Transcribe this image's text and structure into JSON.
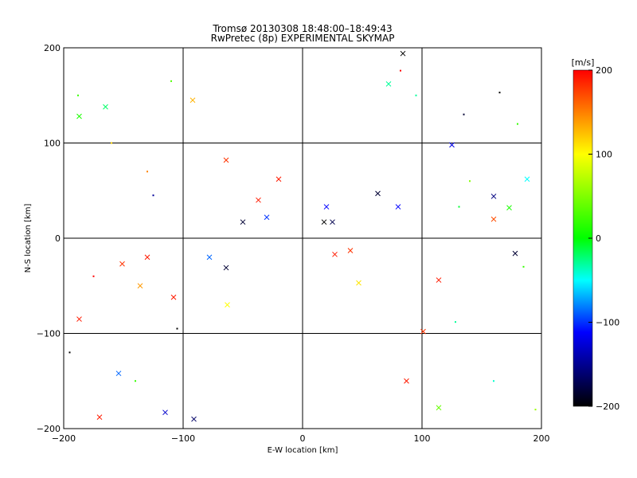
{
  "chart_data": {
    "type": "scatter",
    "title": "Tromsø 20130308 18:48:00–18:49:43",
    "subtitle": "RwPretec (8p) EXPERIMENTAL SKYMAP",
    "xlabel": "E-W location [km]",
    "ylabel": "N-S location [km]",
    "xlim": [
      -200,
      200
    ],
    "ylim": [
      -200,
      200
    ],
    "xticks": [
      -200,
      -100,
      0,
      100,
      200
    ],
    "yticks": [
      -200,
      -100,
      0,
      100,
      200
    ],
    "grid": true,
    "colorbar": {
      "label": "[m/s]",
      "min": -200,
      "max": 200,
      "ticks": [
        200,
        100,
        0,
        -100,
        -200
      ],
      "colors": [
        "#ff0000",
        "#ffff00",
        "#00ff00",
        "#00ffff",
        "#0000ff",
        "#000000"
      ]
    },
    "marker_styles": [
      "small dot",
      "cross"
    ],
    "points": [
      {
        "x": 84,
        "y": 194,
        "v": -200,
        "m": "x"
      },
      {
        "x": -92,
        "y": 145,
        "v": 130,
        "m": "x"
      },
      {
        "x": -187,
        "y": 128,
        "v": 10,
        "m": "x"
      },
      {
        "x": -165,
        "y": 138,
        "v": -20,
        "m": "x"
      },
      {
        "x": 72,
        "y": 162,
        "v": -30,
        "m": "x"
      },
      {
        "x": 125,
        "y": 98,
        "v": -110,
        "m": "x"
      },
      {
        "x": -64,
        "y": 82,
        "v": 180,
        "m": "x"
      },
      {
        "x": -20,
        "y": 62,
        "v": 190,
        "m": "x"
      },
      {
        "x": 80,
        "y": 33,
        "v": -100,
        "m": "x"
      },
      {
        "x": 63,
        "y": 47,
        "v": -180,
        "m": "x"
      },
      {
        "x": 18,
        "y": 17,
        "v": -200,
        "m": "x"
      },
      {
        "x": 25,
        "y": 17,
        "v": -170,
        "m": "x"
      },
      {
        "x": -50,
        "y": 17,
        "v": -180,
        "m": "x"
      },
      {
        "x": -37,
        "y": 40,
        "v": 190,
        "m": "x"
      },
      {
        "x": 160,
        "y": 44,
        "v": -150,
        "m": "x"
      },
      {
        "x": 160,
        "y": 20,
        "v": 170,
        "m": "x"
      },
      {
        "x": 178,
        "y": -16,
        "v": -180,
        "m": "x"
      },
      {
        "x": 27,
        "y": -17,
        "v": 190,
        "m": "x"
      },
      {
        "x": 40,
        "y": -13,
        "v": 180,
        "m": "x"
      },
      {
        "x": -78,
        "y": -20,
        "v": -80,
        "m": "x"
      },
      {
        "x": -64,
        "y": -31,
        "v": -180,
        "m": "x"
      },
      {
        "x": -130,
        "y": -20,
        "v": 190,
        "m": "x"
      },
      {
        "x": -151,
        "y": -27,
        "v": 180,
        "m": "x"
      },
      {
        "x": -136,
        "y": -50,
        "v": 140,
        "m": "x"
      },
      {
        "x": -108,
        "y": -62,
        "v": 190,
        "m": "x"
      },
      {
        "x": -187,
        "y": -85,
        "v": 190,
        "m": "x"
      },
      {
        "x": -115,
        "y": -183,
        "v": -120,
        "m": "x"
      },
      {
        "x": -91,
        "y": -190,
        "v": -160,
        "m": "x"
      },
      {
        "x": -170,
        "y": -188,
        "v": 190,
        "m": "x"
      },
      {
        "x": -154,
        "y": -142,
        "v": -80,
        "m": "x"
      },
      {
        "x": 87,
        "y": -150,
        "v": 190,
        "m": "x"
      },
      {
        "x": 114,
        "y": -178,
        "v": 40,
        "m": "x"
      },
      {
        "x": 47,
        "y": -47,
        "v": 110,
        "m": "x"
      },
      {
        "x": 114,
        "y": -44,
        "v": 190,
        "m": "x"
      },
      {
        "x": 101,
        "y": -98,
        "v": 180,
        "m": "x"
      },
      {
        "x": 20,
        "y": 33,
        "v": -100,
        "m": "x"
      },
      {
        "x": -30,
        "y": 22,
        "v": -90,
        "m": "x"
      },
      {
        "x": 188,
        "y": 62,
        "v": -50,
        "m": "x"
      },
      {
        "x": 173,
        "y": 32,
        "v": 10,
        "m": "x"
      },
      {
        "x": -63,
        "y": -70,
        "v": 100,
        "m": "x"
      },
      {
        "x": 82,
        "y": 176,
        "v": 200,
        "m": "dot"
      },
      {
        "x": 165,
        "y": 153,
        "v": -200,
        "m": "dot"
      },
      {
        "x": 135,
        "y": 130,
        "v": -180,
        "m": "dot"
      },
      {
        "x": 95,
        "y": 150,
        "v": -30,
        "m": "dot"
      },
      {
        "x": 180,
        "y": 120,
        "v": 20,
        "m": "dot"
      },
      {
        "x": 140,
        "y": 60,
        "v": 50,
        "m": "dot"
      },
      {
        "x": 131,
        "y": 33,
        "v": -10,
        "m": "dot"
      },
      {
        "x": 185,
        "y": -30,
        "v": 20,
        "m": "dot"
      },
      {
        "x": 128,
        "y": -88,
        "v": -30,
        "m": "dot"
      },
      {
        "x": 160,
        "y": -150,
        "v": -40,
        "m": "dot"
      },
      {
        "x": 195,
        "y": -180,
        "v": 60,
        "m": "dot"
      },
      {
        "x": -195,
        "y": -120,
        "v": -200,
        "m": "dot"
      },
      {
        "x": -140,
        "y": -150,
        "v": 20,
        "m": "dot"
      },
      {
        "x": -175,
        "y": -40,
        "v": 200,
        "m": "dot"
      },
      {
        "x": -188,
        "y": 150,
        "v": 20,
        "m": "dot"
      },
      {
        "x": -160,
        "y": 100,
        "v": 120,
        "m": "dot"
      },
      {
        "x": -130,
        "y": 70,
        "v": 150,
        "m": "dot"
      },
      {
        "x": -125,
        "y": 45,
        "v": -140,
        "m": "dot"
      },
      {
        "x": -105,
        "y": -95,
        "v": -200,
        "m": "dot"
      },
      {
        "x": -110,
        "y": 165,
        "v": 30,
        "m": "dot"
      }
    ]
  }
}
